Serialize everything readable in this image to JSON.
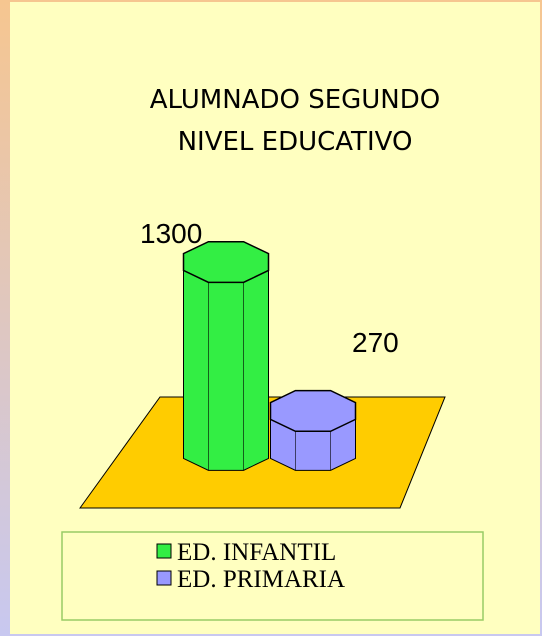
{
  "chart_data": {
    "type": "bar3d",
    "title": [
      "ALUMNADO SEGUNDO",
      "NIVEL EDUCATIVO"
    ],
    "categories": [
      "ED. INFANTIL",
      "ED. PRIMARIA"
    ],
    "values": [
      1300,
      270
    ],
    "colors": [
      "#33ee44",
      "#9999ff"
    ],
    "floor_color": "#ffcc00",
    "legend": "bottom"
  }
}
